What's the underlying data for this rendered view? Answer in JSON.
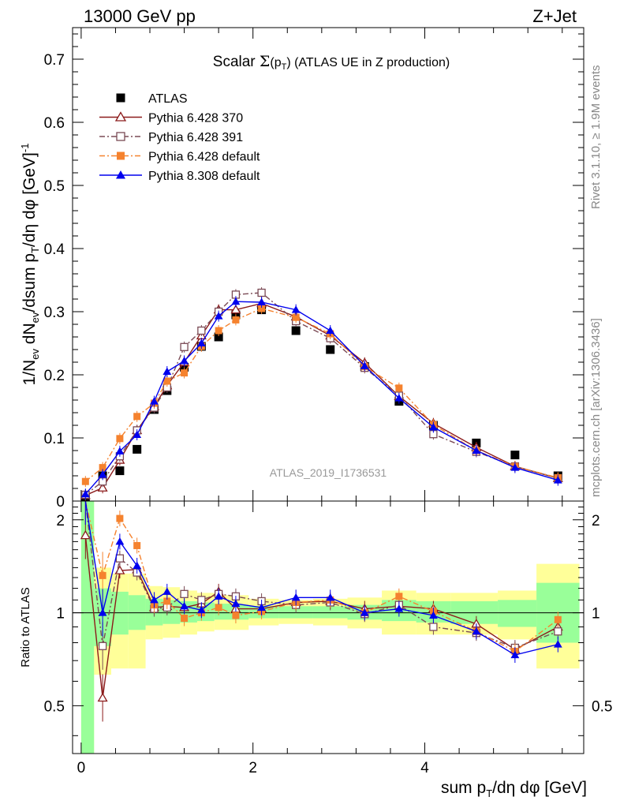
{
  "header": {
    "left": "13000 GeV pp",
    "right": "Z+Jet"
  },
  "side": {
    "rivet": "Rivet 3.1.10, ≥ 1.9M events",
    "mcplots": "mcplots.cern.ch [arXiv:1306.3436]"
  },
  "chart_data": [
    {
      "type": "scatter",
      "title": "Scalar Σ(pT) (ATLAS UE in Z production)",
      "title_parts": {
        "lead": "Scalar ",
        "sym": "Σ",
        "open": "(p",
        "sub": "T",
        "close": ")",
        "tail": " (ATLAS UE in Z production)"
      },
      "ylabel": "1/Nev dNev/dsum pT/dη dφ [GeV]-1",
      "ylabel_parts": {
        "a": "1/N",
        "b": "ev",
        "c": " dN",
        "d": "ev",
        "e": "/dsum p",
        "f": "T",
        "g": "/dη dφ  [GeV]",
        "h": "-1"
      },
      "watermark": "ATLAS_2019_I1736531",
      "xlim": [
        -0.1,
        5.85
      ],
      "ylim": [
        0,
        0.75
      ],
      "yticks": [
        0,
        0.1,
        0.2,
        0.3,
        0.4,
        0.5,
        0.6,
        0.7
      ],
      "ytick_labels": [
        "0",
        "0.1",
        "0.2",
        "0.3",
        "0.4",
        "0.5",
        "0.6",
        "0.7"
      ],
      "legend_position": "top-left",
      "series": [
        {
          "name": "ATLAS",
          "color": "#000000",
          "marker": "filled-square",
          "line": "none",
          "x": [
            0.05,
            0.25,
            0.45,
            0.65,
            0.85,
            1.0,
            1.2,
            1.4,
            1.6,
            1.8,
            2.1,
            2.5,
            2.9,
            3.3,
            3.7,
            4.1,
            4.6,
            5.05,
            5.55
          ],
          "y": [
            0.005,
            0.04,
            0.048,
            0.082,
            0.145,
            0.175,
            0.212,
            0.245,
            0.26,
            0.295,
            0.303,
            0.27,
            0.24,
            0.213,
            0.158,
            0.12,
            0.092,
            0.073,
            0.04
          ]
        },
        {
          "name": "Pythia 6.428 370",
          "color": "#8b1a1a",
          "marker": "open-triangle",
          "line": "solid",
          "x": [
            0.05,
            0.25,
            0.45,
            0.65,
            0.85,
            1.0,
            1.2,
            1.4,
            1.6,
            1.8,
            2.1,
            2.5,
            2.9,
            3.3,
            3.7,
            4.1,
            4.6,
            5.05,
            5.55
          ],
          "y": [
            0.009,
            0.021,
            0.065,
            0.112,
            0.15,
            0.183,
            0.22,
            0.262,
            0.303,
            0.303,
            0.313,
            0.292,
            0.262,
            0.219,
            0.166,
            0.123,
            0.085,
            0.055,
            0.036
          ]
        },
        {
          "name": "Pythia 6.428 391",
          "color": "#7a4a55",
          "marker": "open-square",
          "line": "dashdot",
          "x": [
            0.05,
            0.25,
            0.45,
            0.65,
            0.85,
            1.0,
            1.2,
            1.4,
            1.6,
            1.8,
            2.1,
            2.5,
            2.9,
            3.3,
            3.7,
            4.1,
            4.6,
            5.05,
            5.55
          ],
          "y": [
            0.01,
            0.031,
            0.071,
            0.112,
            0.148,
            0.18,
            0.244,
            0.27,
            0.3,
            0.327,
            0.33,
            0.285,
            0.258,
            0.211,
            0.167,
            0.106,
            0.078,
            0.055,
            0.036
          ]
        },
        {
          "name": "Pythia 6.428 default",
          "color": "#f5822e",
          "marker": "filled-square",
          "line": "dashdot",
          "x": [
            0.05,
            0.25,
            0.45,
            0.65,
            0.85,
            1.0,
            1.2,
            1.4,
            1.6,
            1.8,
            2.1,
            2.5,
            2.9,
            3.3,
            3.7,
            4.1,
            4.6,
            5.05,
            5.55
          ],
          "y": [
            0.031,
            0.053,
            0.099,
            0.134,
            0.155,
            0.19,
            0.203,
            0.245,
            0.27,
            0.287,
            0.305,
            0.291,
            0.265,
            0.213,
            0.179,
            0.121,
            0.08,
            0.055,
            0.037
          ]
        },
        {
          "name": "Pythia 8.308 default",
          "color": "#0000ee",
          "marker": "filled-triangle",
          "line": "solid",
          "x": [
            0.05,
            0.25,
            0.45,
            0.65,
            0.85,
            1.0,
            1.2,
            1.4,
            1.6,
            1.8,
            2.1,
            2.5,
            2.9,
            3.3,
            3.7,
            4.1,
            4.6,
            5.05,
            5.55
          ],
          "y": [
            0.011,
            0.042,
            0.079,
            0.105,
            0.158,
            0.205,
            0.222,
            0.25,
            0.293,
            0.316,
            0.315,
            0.303,
            0.27,
            0.214,
            0.163,
            0.117,
            0.08,
            0.053,
            0.033
          ]
        }
      ]
    },
    {
      "type": "scatter",
      "title": "",
      "ylabel": "Ratio to ATLAS",
      "xlabel": "sum pT/dη dφ [GeV]",
      "xlabel_parts": {
        "a": "sum p",
        "b": "T",
        "c": "/dη dφ [GeV]"
      },
      "xlim": [
        -0.1,
        5.85
      ],
      "ylim": [
        0.35,
        2.3
      ],
      "xticks": [
        0,
        2,
        4
      ],
      "xtick_labels": [
        "0",
        "2",
        "4"
      ],
      "yticks": [
        0.5,
        1,
        2
      ],
      "ytick_labels": [
        "0.5",
        "1",
        "2"
      ],
      "reference_line": 1,
      "uncertainty_bands": {
        "stat_color": "#99ff99",
        "total_color": "#ffff99",
        "bins": [
          {
            "x0": 0.0,
            "x1": 0.15,
            "inner": [
              0.35,
              2.3
            ],
            "outer": [
              0.35,
              2.3
            ]
          },
          {
            "x0": 0.15,
            "x1": 0.35,
            "inner": [
              0.78,
              1.2
            ],
            "outer": [
              0.63,
              1.4
            ]
          },
          {
            "x0": 0.35,
            "x1": 0.55,
            "inner": [
              0.85,
              1.17
            ],
            "outer": [
              0.66,
              1.34
            ]
          },
          {
            "x0": 0.55,
            "x1": 0.75,
            "inner": [
              0.88,
              1.14
            ],
            "outer": [
              0.66,
              1.34
            ]
          },
          {
            "x0": 0.75,
            "x1": 0.95,
            "inner": [
              0.91,
              1.11
            ],
            "outer": [
              0.82,
              1.22
            ]
          },
          {
            "x0": 0.95,
            "x1": 1.15,
            "inner": [
              0.92,
              1.1
            ],
            "outer": [
              0.83,
              1.21
            ]
          },
          {
            "x0": 1.15,
            "x1": 1.35,
            "inner": [
              0.93,
              1.09
            ],
            "outer": [
              0.85,
              1.18
            ]
          },
          {
            "x0": 1.35,
            "x1": 1.55,
            "inner": [
              0.94,
              1.08
            ],
            "outer": [
              0.87,
              1.16
            ]
          },
          {
            "x0": 1.55,
            "x1": 1.75,
            "inner": [
              0.95,
              1.07
            ],
            "outer": [
              0.88,
              1.14
            ]
          },
          {
            "x0": 1.75,
            "x1": 1.95,
            "inner": [
              0.95,
              1.06
            ],
            "outer": [
              0.88,
              1.14
            ]
          },
          {
            "x0": 1.95,
            "x1": 2.3,
            "inner": [
              0.96,
              1.05
            ],
            "outer": [
              0.91,
              1.11
            ]
          },
          {
            "x0": 2.3,
            "x1": 2.7,
            "inner": [
              0.96,
              1.05
            ],
            "outer": [
              0.92,
              1.1
            ]
          },
          {
            "x0": 2.7,
            "x1": 3.1,
            "inner": [
              0.96,
              1.05
            ],
            "outer": [
              0.91,
              1.11
            ]
          },
          {
            "x0": 3.1,
            "x1": 3.5,
            "inner": [
              0.95,
              1.06
            ],
            "outer": [
              0.89,
              1.12
            ]
          },
          {
            "x0": 3.5,
            "x1": 3.9,
            "inner": [
              0.94,
              1.1
            ],
            "outer": [
              0.85,
              1.18
            ]
          },
          {
            "x0": 3.9,
            "x1": 4.3,
            "inner": [
              0.93,
              1.09
            ],
            "outer": [
              0.85,
              1.16
            ]
          },
          {
            "x0": 4.3,
            "x1": 4.85,
            "inner": [
              0.92,
              1.09
            ],
            "outer": [
              0.85,
              1.16
            ]
          },
          {
            "x0": 4.85,
            "x1": 5.3,
            "inner": [
              0.9,
              1.1
            ],
            "outer": [
              0.82,
              1.18
            ]
          },
          {
            "x0": 5.3,
            "x1": 5.8,
            "inner": [
              0.8,
              1.25
            ],
            "outer": [
              0.66,
              1.44
            ]
          }
        ]
      },
      "series": [
        {
          "name": "Pythia 6.428 370",
          "color": "#8b1a1a",
          "marker": "open-triangle",
          "line": "solid",
          "x": [
            0.05,
            0.25,
            0.45,
            0.65,
            0.85,
            1.0,
            1.2,
            1.4,
            1.6,
            1.8,
            2.1,
            2.5,
            2.9,
            3.3,
            3.7,
            4.1,
            4.6,
            5.05,
            5.55
          ],
          "y": [
            1.78,
            0.53,
            1.37,
            1.38,
            1.04,
            1.05,
            1.04,
            1.07,
            1.17,
            1.03,
            1.03,
            1.08,
            1.09,
            1.03,
            1.05,
            1.03,
            0.92,
            0.76,
            0.9
          ]
        },
        {
          "name": "Pythia 6.428 391",
          "color": "#7a4a55",
          "marker": "open-square",
          "line": "dashdot",
          "x": [
            0.05,
            0.25,
            0.45,
            0.65,
            0.85,
            1.0,
            1.2,
            1.4,
            1.6,
            1.8,
            2.1,
            2.5,
            2.9,
            3.3,
            3.7,
            4.1,
            4.6,
            5.05,
            5.55
          ],
          "y": [
            2.3,
            0.78,
            1.5,
            1.35,
            1.03,
            1.04,
            1.15,
            1.1,
            1.15,
            1.13,
            1.09,
            1.06,
            1.08,
            0.99,
            1.06,
            0.9,
            0.86,
            0.77,
            0.87
          ]
        },
        {
          "name": "Pythia 6.428 default",
          "color": "#f5822e",
          "marker": "filled-square",
          "line": "dashdot",
          "x": [
            0.05,
            0.25,
            0.45,
            0.65,
            0.85,
            1.0,
            1.2,
            1.4,
            1.6,
            1.8,
            2.1,
            2.5,
            2.9,
            3.3,
            3.7,
            4.1,
            4.6,
            5.05,
            5.55
          ],
          "y": [
            2.3,
            1.32,
            2.02,
            1.65,
            1.06,
            1.09,
            0.96,
            1.0,
            1.04,
            0.98,
            1.01,
            1.08,
            1.1,
            1.0,
            1.13,
            1.01,
            0.87,
            0.75,
            0.95
          ]
        },
        {
          "name": "Pythia 8.308 default",
          "color": "#0000ee",
          "marker": "filled-triangle",
          "line": "solid",
          "x": [
            0.05,
            0.25,
            0.45,
            0.65,
            0.85,
            1.0,
            1.2,
            1.4,
            1.6,
            1.8,
            2.1,
            2.5,
            2.9,
            3.3,
            3.7,
            4.1,
            4.6,
            5.05,
            5.55
          ],
          "y": [
            2.3,
            1.0,
            1.7,
            1.42,
            1.1,
            1.17,
            1.05,
            1.02,
            1.13,
            1.07,
            1.04,
            1.12,
            1.12,
            1.0,
            1.03,
            0.98,
            0.87,
            0.73,
            0.79
          ]
        }
      ]
    }
  ]
}
